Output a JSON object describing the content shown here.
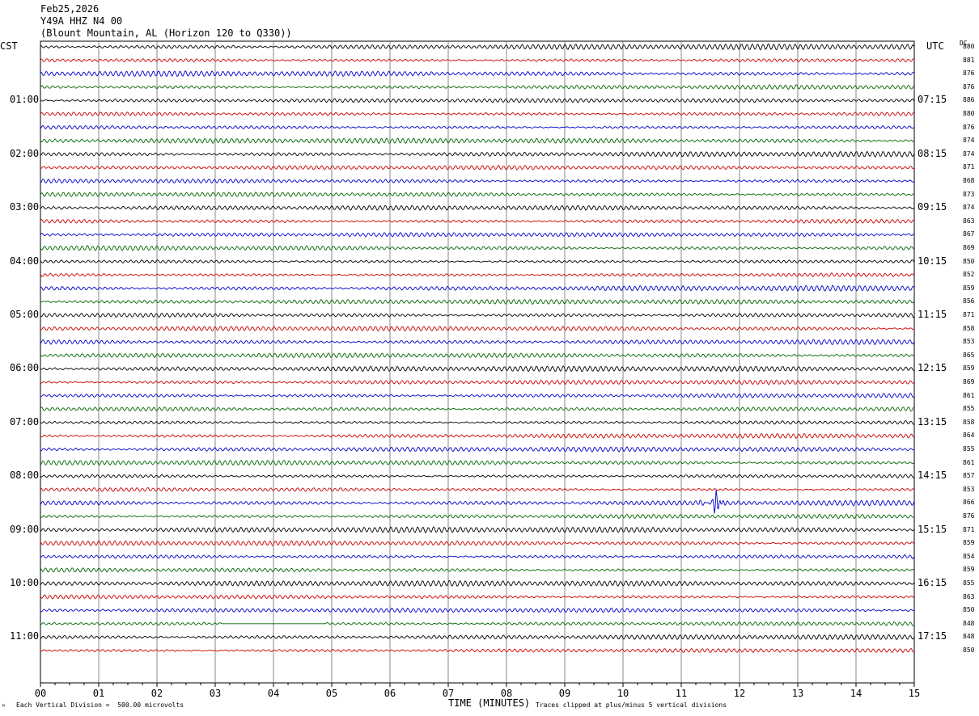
{
  "header": {
    "date": "Feb25,2026",
    "station": "Y49A HHZ N4 00",
    "location": "(Blount Mountain, AL (Horizon 120 to Q330))"
  },
  "left_tz": "CST",
  "right_tz": "UTC",
  "dc_header": "DC",
  "footer": {
    "scale_note": "Each Vertical Division =  500.00 microvolts",
    "xlabel": "TIME (MINUTES)",
    "clip_note": "Traces clipped at plus/minus 5 vertical divisions"
  },
  "chart_data": {
    "type": "line",
    "title": "Feb25,2026 Y49A HHZ N4 00 (Blount Mountain, AL (Horizon 120 to Q330))",
    "xlabel": "TIME (MINUTES)",
    "ylabel": "",
    "xlim": [
      0,
      15
    ],
    "x_ticks": [
      "00",
      "01",
      "02",
      "03",
      "04",
      "05",
      "06",
      "07",
      "08",
      "09",
      "10",
      "11",
      "12",
      "13",
      "14",
      "15"
    ],
    "rows_per_hour": 4,
    "row_minutes": 15,
    "trace_colors": [
      "#000000",
      "#cc0000",
      "#0000cc",
      "#006600"
    ],
    "left_hour_labels": [
      "01:00",
      "02:00",
      "03:00",
      "04:00",
      "05:00",
      "06:00",
      "07:00",
      "08:00",
      "09:00",
      "10:00",
      "11:00"
    ],
    "right_hour_labels": [
      "07:15",
      "08:15",
      "09:15",
      "10:15",
      "11:15",
      "12:15",
      "13:15",
      "14:15",
      "15:15",
      "16:15",
      "17:15"
    ],
    "dc_offsets": [
      880,
      881,
      876,
      876,
      886,
      880,
      876,
      874,
      874,
      871,
      868,
      873,
      874,
      863,
      867,
      869,
      850,
      852,
      859,
      856,
      871,
      858,
      853,
      865,
      859,
      869,
      861,
      855,
      858,
      864,
      855,
      861,
      857,
      853,
      866,
      876,
      871,
      859,
      854,
      859,
      855,
      863,
      850,
      848,
      848,
      850
    ],
    "events": [
      {
        "row": 34,
        "minute": 11.6,
        "amplitude": "large"
      }
    ],
    "dropouts": [
      {
        "row": 43,
        "start_minute": 3.1,
        "end_minute": 4.9
      }
    ],
    "grid": true
  }
}
